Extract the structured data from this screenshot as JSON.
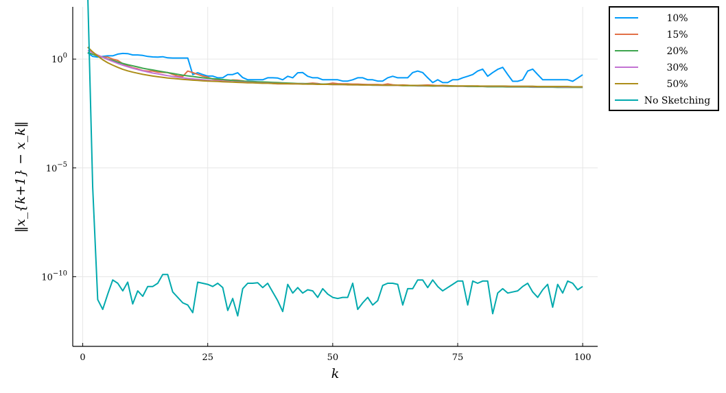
{
  "chart_data": {
    "type": "line",
    "title": "",
    "xlabel": "k",
    "ylabel": "‖x_{k+1} − x_k‖",
    "xlim": [
      -2,
      103
    ],
    "ylog": true,
    "ylim_log10": [
      -13.2,
      2.4
    ],
    "xticks": [
      0,
      25,
      50,
      75,
      100
    ],
    "xtick_labels": [
      "0",
      "25",
      "50",
      "75",
      "100"
    ],
    "yticks_log10": [
      0,
      -5,
      -10
    ],
    "ytick_labels": [
      {
        "base": "10",
        "exp": "0"
      },
      {
        "base": "10",
        "exp": "−5"
      },
      {
        "base": "10",
        "exp": "−10"
      }
    ],
    "grid": true,
    "legend_position": "outside-top-right",
    "series": [
      {
        "name": "10%",
        "color": "#009af9",
        "values": [
          0.29,
          0.12,
          0.09,
          0.12,
          0.15,
          0.15,
          0.23,
          0.26,
          0.25,
          0.19,
          0.19,
          0.17,
          0.12,
          0.1,
          0.09,
          0.11,
          0.06,
          0.05,
          0.05,
          0.05,
          0.05,
          -0.71,
          -0.63,
          -0.71,
          -0.78,
          -0.78,
          -0.86,
          -0.86,
          -0.71,
          -0.71,
          -0.63,
          -0.85,
          -0.95,
          -0.95,
          -0.95,
          -0.95,
          -0.86,
          -0.86,
          -0.87,
          -0.95,
          -0.79,
          -0.86,
          -0.63,
          -0.62,
          -0.79,
          -0.86,
          -0.86,
          -0.95,
          -0.95,
          -0.95,
          -0.95,
          -1.01,
          -1.01,
          -0.95,
          -0.86,
          -0.86,
          -0.95,
          -0.95,
          -1.01,
          -1.01,
          -0.86,
          -0.79,
          -0.86,
          -0.86,
          -0.86,
          -0.62,
          -0.55,
          -0.62,
          -0.86,
          -1.08,
          -0.95,
          -1.08,
          -1.08,
          -0.95,
          -0.95,
          -0.86,
          -0.79,
          -0.71,
          -0.55,
          -0.46,
          -0.79,
          -0.62,
          -0.47,
          -0.38,
          -0.71,
          -1.02,
          -1.02,
          -0.95,
          -0.55,
          -0.46,
          -0.71,
          -0.95,
          -0.95,
          -0.95,
          -0.95,
          -0.95,
          -0.95,
          -1.02,
          -0.87,
          -0.72
        ]
      },
      {
        "name": "15%",
        "color": "#e26f46",
        "values": [
          0.55,
          0.29,
          0.18,
          0.09,
          0.09,
          0.0,
          -0.06,
          -0.21,
          -0.32,
          -0.4,
          -0.45,
          -0.53,
          -0.55,
          -0.55,
          -0.6,
          -0.61,
          -0.62,
          -0.7,
          -0.78,
          -0.8,
          -0.55,
          -0.62,
          -0.7,
          -0.78,
          -0.83,
          -0.92,
          -0.96,
          -1.01,
          -1.0,
          -0.96,
          -0.97,
          -1.0,
          -1.05,
          -1.05,
          -1.05,
          -1.08,
          -1.08,
          -1.12,
          -1.14,
          -1.14,
          -1.14,
          -1.14,
          -1.13,
          -1.14,
          -1.12,
          -1.1,
          -1.12,
          -1.16,
          -1.14,
          -1.1,
          -1.13,
          -1.14,
          -1.14,
          -1.15,
          -1.15,
          -1.16,
          -1.17,
          -1.17,
          -1.17,
          -1.18,
          -1.14,
          -1.18,
          -1.2,
          -1.19,
          -1.2,
          -1.22,
          -1.21,
          -1.2,
          -1.19,
          -1.2,
          -1.22,
          -1.21,
          -1.22,
          -1.23,
          -1.25,
          -1.24,
          -1.25,
          -1.24,
          -1.23,
          -1.25,
          -1.26,
          -1.25,
          -1.24,
          -1.24,
          -1.25,
          -1.26,
          -1.27,
          -1.27,
          -1.26,
          -1.27,
          -1.28,
          -1.27,
          -1.27,
          -1.28,
          -1.28,
          -1.29,
          -1.28,
          -1.28,
          -1.29,
          -1.29
        ]
      },
      {
        "name": "20%",
        "color": "#3da44d",
        "values": [
          0.3,
          0.22,
          0.14,
          0.08,
          0.0,
          -0.06,
          -0.14,
          -0.2,
          -0.26,
          -0.31,
          -0.36,
          -0.42,
          -0.46,
          -0.5,
          -0.54,
          -0.58,
          -0.62,
          -0.66,
          -0.7,
          -0.74,
          -0.77,
          -0.8,
          -0.83,
          -0.86,
          -0.88,
          -0.9,
          -0.92,
          -0.94,
          -0.96,
          -0.98,
          -1.0,
          -1.01,
          -1.02,
          -1.03,
          -1.04,
          -1.05,
          -1.06,
          -1.07,
          -1.08,
          -1.09,
          -1.1,
          -1.11,
          -1.12,
          -1.12,
          -1.13,
          -1.14,
          -1.14,
          -1.15,
          -1.15,
          -1.16,
          -1.16,
          -1.17,
          -1.17,
          -1.18,
          -1.18,
          -1.19,
          -1.19,
          -1.2,
          -1.2,
          -1.2,
          -1.21,
          -1.21,
          -1.21,
          -1.22,
          -1.22,
          -1.22,
          -1.23,
          -1.23,
          -1.23,
          -1.24,
          -1.24,
          -1.24,
          -1.25,
          -1.25,
          -1.25,
          -1.25,
          -1.26,
          -1.26,
          -1.26,
          -1.26,
          -1.27,
          -1.27,
          -1.27,
          -1.27,
          -1.28,
          -1.28,
          -1.28,
          -1.28,
          -1.28,
          -1.29,
          -1.29,
          -1.29,
          -1.29,
          -1.29,
          -1.3,
          -1.3,
          -1.3,
          -1.3,
          -1.3,
          -1.3
        ]
      },
      {
        "name": "30%",
        "color": "#c271d2",
        "values": [
          0.4,
          0.29,
          0.18,
          0.08,
          -0.02,
          -0.11,
          -0.2,
          -0.28,
          -0.35,
          -0.42,
          -0.48,
          -0.54,
          -0.59,
          -0.64,
          -0.68,
          -0.72,
          -0.76,
          -0.8,
          -0.83,
          -0.86,
          -0.89,
          -0.91,
          -0.93,
          -0.95,
          -0.97,
          -0.99,
          -1.0,
          -1.02,
          -1.03,
          -1.04,
          -1.05,
          -1.06,
          -1.07,
          -1.08,
          -1.09,
          -1.1,
          -1.1,
          -1.11,
          -1.12,
          -1.12,
          -1.13,
          -1.13,
          -1.14,
          -1.14,
          -1.15,
          -1.15,
          -1.15,
          -1.16,
          -1.16,
          -1.17,
          -1.17,
          -1.17,
          -1.18,
          -1.18,
          -1.18,
          -1.19,
          -1.19,
          -1.19,
          -1.2,
          -1.2,
          -1.2,
          -1.2,
          -1.21,
          -1.21,
          -1.21,
          -1.21,
          -1.22,
          -1.22,
          -1.22,
          -1.22,
          -1.23,
          -1.23,
          -1.23,
          -1.23,
          -1.24,
          -1.24,
          -1.24,
          -1.24,
          -1.24,
          -1.25,
          -1.25,
          -1.25,
          -1.25,
          -1.25,
          -1.26,
          -1.26,
          -1.26,
          -1.26,
          -1.26,
          -1.27,
          -1.27,
          -1.27,
          -1.27,
          -1.27,
          -1.27,
          -1.28,
          -1.28,
          -1.28,
          -1.28,
          -1.28
        ]
      },
      {
        "name": "50%",
        "color": "#ac8d18",
        "values": [
          0.55,
          0.33,
          0.14,
          -0.03,
          -0.17,
          -0.28,
          -0.38,
          -0.47,
          -0.54,
          -0.6,
          -0.65,
          -0.7,
          -0.74,
          -0.78,
          -0.81,
          -0.84,
          -0.87,
          -0.89,
          -0.91,
          -0.93,
          -0.95,
          -0.97,
          -0.98,
          -1.0,
          -1.01,
          -1.02,
          -1.03,
          -1.04,
          -1.05,
          -1.06,
          -1.07,
          -1.08,
          -1.09,
          -1.09,
          -1.1,
          -1.11,
          -1.11,
          -1.12,
          -1.12,
          -1.13,
          -1.13,
          -1.14,
          -1.14,
          -1.15,
          -1.15,
          -1.15,
          -1.16,
          -1.16,
          -1.16,
          -1.17,
          -1.17,
          -1.17,
          -1.18,
          -1.18,
          -1.18,
          -1.19,
          -1.19,
          -1.19,
          -1.19,
          -1.2,
          -1.2,
          -1.2,
          -1.2,
          -1.21,
          -1.21,
          -1.21,
          -1.21,
          -1.21,
          -1.22,
          -1.22,
          -1.22,
          -1.22,
          -1.22,
          -1.23,
          -1.23,
          -1.23,
          -1.23,
          -1.23,
          -1.24,
          -1.24,
          -1.24,
          -1.24,
          -1.24,
          -1.24,
          -1.25,
          -1.25,
          -1.25,
          -1.25,
          -1.25,
          -1.25,
          -1.26,
          -1.26,
          -1.26,
          -1.26,
          -1.26,
          -1.26,
          -1.26,
          -1.27,
          -1.27,
          -1.27
        ]
      },
      {
        "name": "No Sketching",
        "color": "#00a9ad",
        "values": [
          2.95,
          -5.9,
          -11.05,
          -11.5,
          -10.8,
          -10.15,
          -10.3,
          -10.65,
          -10.25,
          -11.25,
          -10.65,
          -10.9,
          -10.45,
          -10.45,
          -10.3,
          -9.9,
          -9.9,
          -10.7,
          -10.95,
          -11.2,
          -11.3,
          -11.65,
          -10.25,
          -10.3,
          -10.35,
          -10.45,
          -10.3,
          -10.5,
          -11.55,
          -11.0,
          -11.8,
          -10.55,
          -10.3,
          -10.3,
          -10.28,
          -10.5,
          -10.3,
          -10.7,
          -11.1,
          -11.6,
          -10.35,
          -10.75,
          -10.5,
          -10.75,
          -10.6,
          -10.65,
          -10.95,
          -10.55,
          -10.8,
          -10.95,
          -11.0,
          -10.95,
          -10.95,
          -10.3,
          -11.5,
          -11.2,
          -10.95,
          -11.3,
          -11.1,
          -10.4,
          -10.3,
          -10.3,
          -10.35,
          -11.3,
          -10.55,
          -10.55,
          -10.15,
          -10.15,
          -10.5,
          -10.15,
          -10.45,
          -10.65,
          -10.5,
          -10.35,
          -10.2,
          -10.2,
          -11.3,
          -10.2,
          -10.3,
          -10.2,
          -10.2,
          -11.7,
          -10.75,
          -10.55,
          -10.75,
          -10.7,
          -10.65,
          -10.45,
          -10.3,
          -10.7,
          -10.95,
          -10.6,
          -10.35,
          -11.4,
          -10.35,
          -10.75,
          -10.2,
          -10.3,
          -10.6,
          -10.45
        ]
      }
    ]
  }
}
